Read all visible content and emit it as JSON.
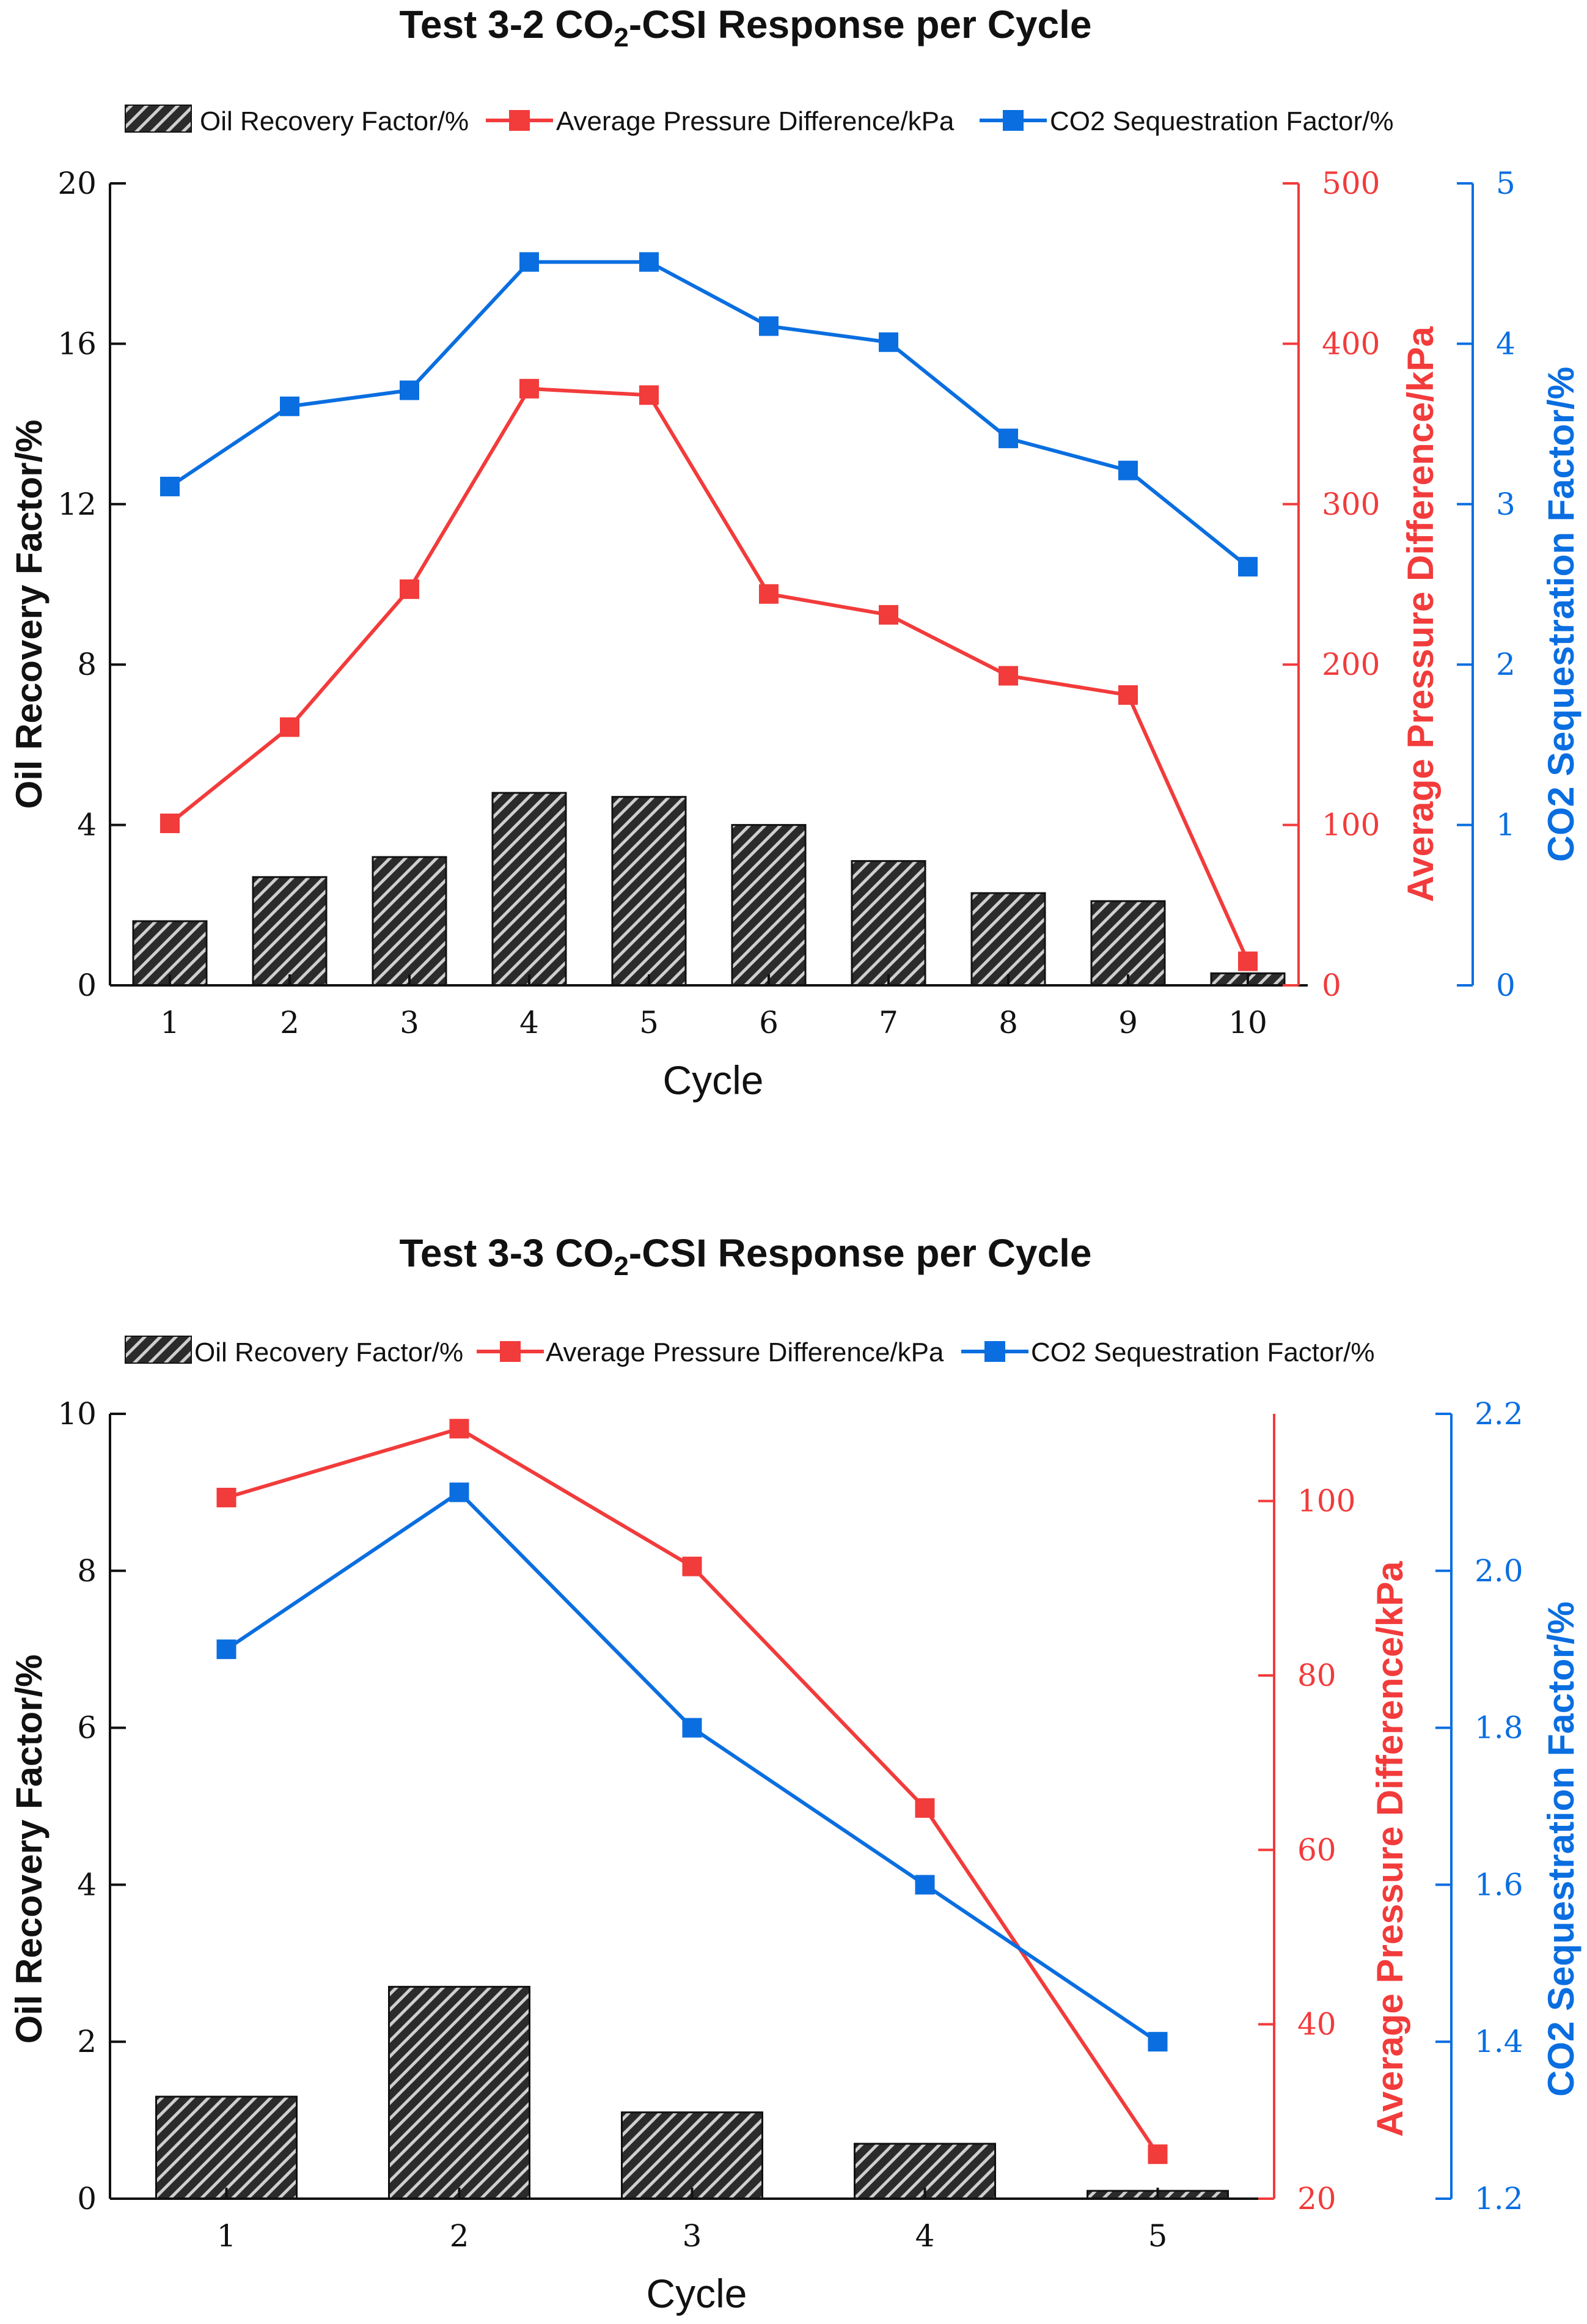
{
  "colors": {
    "bar": "#2b2b2b",
    "pressure": "#f23b3b",
    "sequestration": "#0a6ee0",
    "axis_black": "#111111"
  },
  "chart_data": [
    {
      "type": "bar",
      "title_prefix": "Test 3-2 CO",
      "title_sub": "2",
      "title_suffix": "-CSI Response per Cycle",
      "legend": [
        {
          "label": "Oil Recovery Factor/%",
          "icon": "hatched-bar-icon"
        },
        {
          "label": "Average Pressure Difference/kPa",
          "icon": "red-line-square-icon"
        },
        {
          "label": "CO2 Sequestration Factor/%",
          "icon": "blue-line-square-icon"
        }
      ],
      "xlabel": "Cycle",
      "categories": [
        "1",
        "2",
        "3",
        "4",
        "5",
        "6",
        "7",
        "8",
        "9",
        "10"
      ],
      "series": [
        {
          "name": "Oil Recovery Factor/%",
          "axis": "left",
          "kind": "bar",
          "values": [
            1.6,
            2.7,
            3.2,
            4.8,
            4.7,
            4.0,
            3.1,
            2.3,
            2.1,
            0.3
          ]
        },
        {
          "name": "Average Pressure Difference/kPa",
          "axis": "right1",
          "kind": "line",
          "values": [
            101,
            161,
            247,
            372,
            368,
            244,
            231,
            193,
            181,
            15
          ]
        },
        {
          "name": "CO2 Sequestration Factor/%",
          "axis": "right2",
          "kind": "line",
          "values": [
            3.11,
            3.61,
            3.71,
            4.51,
            4.51,
            4.11,
            4.01,
            3.41,
            3.21,
            2.61
          ]
        }
      ],
      "axes": {
        "left": {
          "label": "Oil Recovery Factor/%",
          "ylim": [
            0,
            20
          ],
          "ticks": [
            "0",
            "4",
            "8",
            "12",
            "16",
            "20"
          ]
        },
        "right1": {
          "label": "Average Pressure Difference/kPa",
          "ylim": [
            0,
            500
          ],
          "ticks": [
            "0",
            "100",
            "200",
            "300",
            "400",
            "500"
          ]
        },
        "right2": {
          "label": "CO2 Sequestration Factor/%",
          "ylim": [
            0,
            5
          ],
          "ticks": [
            "0",
            "1",
            "2",
            "3",
            "4",
            "5"
          ]
        }
      }
    },
    {
      "type": "bar",
      "title_prefix": "Test 3-3 CO",
      "title_sub": "2",
      "title_suffix": "-CSI Response per Cycle",
      "legend": [
        {
          "label": "Oil Recovery Factor/%",
          "icon": "hatched-bar-icon"
        },
        {
          "label": "Average Pressure Difference/kPa",
          "icon": "red-line-square-icon"
        },
        {
          "label": "CO2 Sequestration Factor/%",
          "icon": "blue-line-square-icon"
        }
      ],
      "xlabel": "Cycle",
      "categories": [
        "1",
        "2",
        "3",
        "4",
        "5"
      ],
      "series": [
        {
          "name": "Oil Recovery Factor/%",
          "axis": "left",
          "kind": "bar",
          "values": [
            1.3,
            2.7,
            1.1,
            0.7,
            0.1
          ]
        },
        {
          "name": "Average Pressure Difference/kPa",
          "axis": "right1",
          "kind": "line",
          "values": [
            100.4,
            108.3,
            92.5,
            64.8,
            25.1
          ]
        },
        {
          "name": "CO2 Sequestration Factor/%",
          "axis": "right2",
          "kind": "line",
          "values": [
            1.9,
            2.1,
            1.8,
            1.6,
            1.4
          ]
        }
      ],
      "axes": {
        "left": {
          "label": "Oil Recovery Factor/%",
          "ylim": [
            0,
            10
          ],
          "ticks": [
            "0",
            "2",
            "4",
            "6",
            "8",
            "10"
          ]
        },
        "right1": {
          "label": "Average Pressure Difference/kPa",
          "ylim": [
            20,
            110
          ],
          "ticks": [
            "20",
            "40",
            "60",
            "80",
            "100"
          ]
        },
        "right2": {
          "label": "CO2 Sequestration Factor/%",
          "ylim": [
            1.2,
            2.2
          ],
          "ticks": [
            "1.2",
            "1.4",
            "1.6",
            "1.8",
            "2.0",
            "2.2"
          ]
        }
      }
    }
  ]
}
